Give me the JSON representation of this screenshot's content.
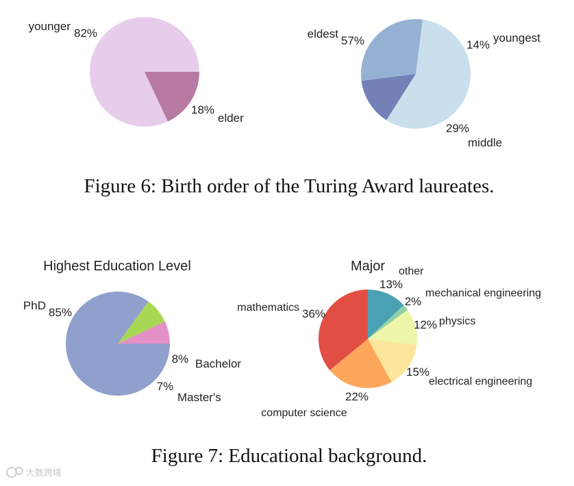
{
  "figure6": {
    "caption": "Figure 6: Birth order of the Turing Award laureates."
  },
  "figure7": {
    "caption": "Figure 7: Educational background."
  },
  "chart_data": [
    {
      "type": "pie",
      "title": "",
      "labels": [
        "younger",
        "elder"
      ],
      "values": [
        82,
        18
      ],
      "pct_labels": [
        "82%",
        "18%"
      ],
      "colors": [
        "#e7cdeb",
        "#b87aa3"
      ]
    },
    {
      "type": "pie",
      "title": "",
      "labels": [
        "eldest",
        "youngest",
        "middle"
      ],
      "values": [
        57,
        14,
        29
      ],
      "pct_labels": [
        "57%",
        "14%",
        "29%"
      ],
      "colors": [
        "#c9dfec",
        "#7381b7",
        "#95b1d4"
      ]
    },
    {
      "type": "pie",
      "title": "Highest Education Level",
      "labels": [
        "PhD",
        "Bachelor",
        "Master's"
      ],
      "values": [
        85,
        8,
        7
      ],
      "pct_labels": [
        "85%",
        "8%",
        "7%"
      ],
      "colors": [
        "#8fa0cc",
        "#a7d854",
        "#e48fc6"
      ]
    },
    {
      "type": "pie",
      "title": "Major",
      "labels": [
        "other",
        "mechanical engineering",
        "physics",
        "electrical engineering",
        "computer science",
        "mathematics"
      ],
      "values": [
        13,
        2,
        12,
        15,
        22,
        36
      ],
      "pct_labels": [
        "13%",
        "2%",
        "12%",
        "15%",
        "22%",
        "36%"
      ],
      "colors": [
        "#4aa1b3",
        "#8fd1a5",
        "#eef6a9",
        "#fde69c",
        "#fca75c",
        "#e34e44"
      ]
    }
  ],
  "watermark": "大数跨境"
}
